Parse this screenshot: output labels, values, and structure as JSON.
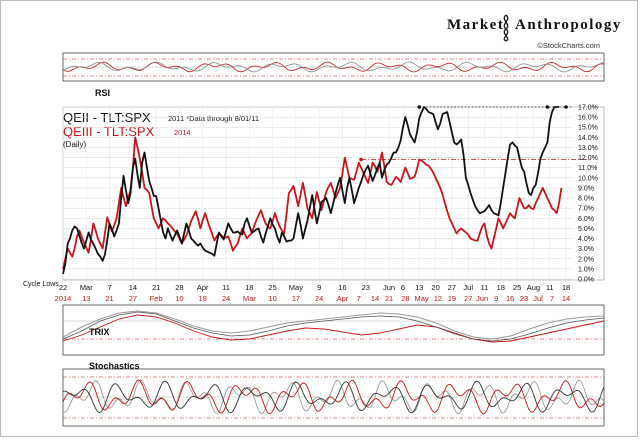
{
  "header": {
    "brand_left": "Market",
    "brand_right": "Anthropology",
    "source": "©StockCharts.com"
  },
  "panels": {
    "rsi_label": "RSI",
    "trix_label": "TRIX",
    "stochastics_label": "Stochastics"
  },
  "legend": {
    "line1_title": "QEII - TLT:SPX",
    "line1_note": "2011 *Data through 8/01/11",
    "line2_title": "QEIII - TLT:SPX",
    "line2_note": "2014",
    "line3": "(Daily)"
  },
  "annotation": {
    "cycle_lows": "Cycle Lows"
  },
  "chart_data": {
    "type": "line",
    "title": "QEII - TLT:SPX 2011 *Data through 8/01/11 / QEIII - TLT:SPX 2014 (Daily)",
    "colors": {
      "black_series": "#111111",
      "red_series": "#c8151b",
      "grid": "#d8d8d8"
    },
    "y_axis": {
      "side": "right",
      "unit": "%",
      "range": [
        0,
        17
      ],
      "ticks": [
        "0.0%",
        "1.0%",
        "2.0%",
        "3.0%",
        "4.0%",
        "5.0%",
        "6.0%",
        "7.0%",
        "8.0%",
        "9.0%",
        "10.0%",
        "11.0%",
        "12.0%",
        "13.0%",
        "14.0%",
        "15.0%",
        "16.0%",
        "17.0%"
      ]
    },
    "x_axis_black": {
      "ticks": [
        {
          "label": "22",
          "i": 0
        },
        {
          "label": "Mar",
          "i": 10
        },
        {
          "label": "7",
          "i": 20
        },
        {
          "label": "14",
          "i": 30
        },
        {
          "label": "21",
          "i": 40
        },
        {
          "label": "28",
          "i": 50
        },
        {
          "label": "Apr",
          "i": 60
        },
        {
          "label": "11",
          "i": 70
        },
        {
          "label": "18",
          "i": 80
        },
        {
          "label": "25",
          "i": 90
        },
        {
          "label": "May",
          "i": 100
        },
        {
          "label": "9",
          "i": 110
        },
        {
          "label": "16",
          "i": 120
        },
        {
          "label": "23",
          "i": 130
        },
        {
          "label": "Jun",
          "i": 140
        },
        {
          "label": "6",
          "i": 146
        },
        {
          "label": "13",
          "i": 153
        },
        {
          "label": "20",
          "i": 160
        },
        {
          "label": "27",
          "i": 167
        },
        {
          "label": "Jul",
          "i": 174
        },
        {
          "label": "11",
          "i": 181
        },
        {
          "label": "18",
          "i": 188
        },
        {
          "label": "25",
          "i": 195
        },
        {
          "label": "Aug",
          "i": 202
        },
        {
          "label": "11",
          "i": 209
        },
        {
          "label": "18",
          "i": 216
        }
      ]
    },
    "x_axis_red": {
      "ticks": [
        {
          "label": "2014",
          "i": 0
        },
        {
          "label": "13",
          "i": 10
        },
        {
          "label": "21",
          "i": 20
        },
        {
          "label": "27",
          "i": 30
        },
        {
          "label": "Feb",
          "i": 40
        },
        {
          "label": "10",
          "i": 50
        },
        {
          "label": "18",
          "i": 60
        },
        {
          "label": "24",
          "i": 70
        },
        {
          "label": "Mar",
          "i": 80
        },
        {
          "label": "10",
          "i": 90
        },
        {
          "label": "17",
          "i": 100
        },
        {
          "label": "24",
          "i": 110
        },
        {
          "label": "Apr",
          "i": 120
        },
        {
          "label": "7",
          "i": 127
        },
        {
          "label": "14",
          "i": 134
        },
        {
          "label": "21",
          "i": 140
        },
        {
          "label": "28",
          "i": 147
        },
        {
          "label": "May",
          "i": 154
        },
        {
          "label": "12",
          "i": 161
        },
        {
          "label": "19",
          "i": 167
        },
        {
          "label": "27",
          "i": 174
        },
        {
          "label": "Jun",
          "i": 180
        },
        {
          "label": "9",
          "i": 186
        },
        {
          "label": "16",
          "i": 192
        },
        {
          "label": "23",
          "i": 198
        },
        {
          "label": "Jul",
          "i": 204
        },
        {
          "label": "7",
          "i": 210
        },
        {
          "label": "14",
          "i": 216
        }
      ]
    },
    "series": [
      {
        "name": "QEII - TLT:SPX",
        "color": "#111111",
        "x_count": 220,
        "values": [
          0.5,
          1.5,
          3.5,
          4,
          4.8,
          5.2,
          5,
          4.3,
          3.6,
          3,
          3.8,
          4.6,
          3.9,
          3.5,
          3,
          2.5,
          2.2,
          1.8,
          2.4,
          3.8,
          5.5,
          4.9,
          4.2,
          4.8,
          5.5,
          8,
          10.2,
          8.8,
          7.5,
          8.5,
          11,
          11.9,
          10.3,
          9,
          11.5,
          12.5,
          11.1,
          9.7,
          9,
          8.2,
          8.2,
          7,
          5.8,
          4.6,
          4,
          5,
          4.4,
          3.8,
          4.3,
          4.8,
          4.2,
          3.5,
          4.5,
          5.5,
          4.8,
          4,
          3.8,
          3.5,
          3.3,
          3.5,
          3.1,
          2.8,
          2.7,
          2.6,
          2.5,
          2.3,
          3.5,
          4.6,
          4.2,
          3.9,
          4.7,
          5.5,
          5,
          4.6,
          4.6,
          4.7,
          4.5,
          4.4,
          5.5,
          6,
          5.3,
          4.6,
          4.7,
          4.9,
          5,
          4.2,
          3.6,
          4.5,
          5.2,
          6,
          5.4,
          5,
          4.2,
          3.6,
          4.6,
          4.2,
          3.7,
          3.8,
          3.8,
          4,
          5.3,
          6.5,
          5.4,
          4,
          4.9,
          5.8,
          7,
          8.3,
          6.9,
          5.5,
          6.5,
          7.6,
          7.8,
          8,
          7.3,
          6.5,
          7.4,
          8.5,
          9.3,
          10,
          8.7,
          7.5,
          9,
          10,
          8.8,
          7.5,
          8.2,
          9,
          9.6,
          10.3,
          10.8,
          11.2,
          10.4,
          9.7,
          10.3,
          11,
          11.5,
          10,
          10.8,
          11.3,
          11.5,
          12,
          12.5,
          12.5,
          13,
          13.7,
          15,
          16,
          15.2,
          14.3,
          13.9,
          13.5,
          14.5,
          15.9,
          16.5,
          17,
          16.8,
          16.5,
          16.4,
          16.3,
          15.5,
          14.8,
          15.4,
          16.3,
          16.4,
          16.5,
          15.5,
          14.5,
          13.5,
          13.3,
          13.5,
          13.8,
          12.3,
          10,
          9.3,
          8.5,
          7.8,
          7.2,
          6.8,
          6.5,
          6.6,
          6.7,
          7,
          7.3,
          6.8,
          6.5,
          6.4,
          6.3,
          7.5,
          9,
          10.5,
          12,
          13.3,
          13.5,
          13.2,
          13,
          12,
          11,
          10.6,
          9.5,
          8.5,
          8.3,
          9,
          9.3,
          10.5,
          11.9,
          12.5,
          13,
          13.5,
          15.5,
          16.5,
          17,
          17,
          17
        ]
      },
      {
        "name": "QEIII - TLT:SPX",
        "color": "#c8151b",
        "x_count": 220,
        "values": [
          1,
          2,
          3,
          2.6,
          2.2,
          3,
          4.2,
          4.8,
          4.2,
          3.6,
          3.1,
          2.6,
          3.9,
          5.5,
          4.8,
          4,
          3.5,
          3,
          4.5,
          6.1,
          5.4,
          4.7,
          5.3,
          6,
          7.5,
          9,
          8.1,
          7.2,
          8,
          8.8,
          11,
          14,
          13,
          11.9,
          10.5,
          9,
          8.8,
          8.5,
          7.2,
          6,
          5.5,
          5,
          5.5,
          6,
          5.8,
          5.5,
          5.3,
          5,
          4.7,
          4.5,
          4,
          3.5,
          3.9,
          4.3,
          5,
          5.7,
          6.2,
          6.7,
          5.9,
          5,
          5.8,
          6.5,
          5.8,
          5.1,
          4.5,
          3.8,
          4.2,
          4.5,
          4.3,
          4.1,
          4.1,
          4.2,
          3.5,
          2.8,
          3.2,
          3.5,
          4.3,
          5,
          4.5,
          4,
          4.3,
          4.5,
          5.2,
          5.8,
          6.3,
          6.8,
          6.1,
          5.5,
          5.2,
          5,
          5.7,
          6.5,
          5.8,
          5.2,
          4.8,
          4.5,
          6.5,
          8.5,
          8.8,
          9.2,
          8.2,
          7.2,
          8.3,
          9.5,
          8.3,
          7,
          6.5,
          6,
          7.3,
          8.6,
          7.7,
          6.8,
          7.7,
          8.6,
          9.1,
          9.5,
          8.8,
          8,
          8.5,
          9,
          10.5,
          12,
          11,
          10,
          9.9,
          9.8,
          10.6,
          11.5,
          11,
          10.5,
          10,
          9.5,
          10.5,
          11.5,
          11.1,
          10.6,
          11.5,
          12.5,
          11.1,
          9.6,
          9.4,
          9.3,
          9.7,
          10.1,
          9.9,
          9.6,
          10.3,
          11,
          10.5,
          9.9,
          10,
          10.1,
          10.9,
          11.8,
          11.7,
          11.5,
          11.3,
          11.2,
          10.9,
          10.5,
          10,
          9.5,
          9,
          8.3,
          7.5,
          6.7,
          6,
          5.5,
          5,
          4.5,
          4.8,
          5,
          4.8,
          4.6,
          4.4,
          4,
          3.9,
          3.8,
          3.8,
          4.5,
          5.2,
          5.5,
          4.3,
          3.5,
          3,
          4,
          5,
          6,
          5.5,
          5,
          5.5,
          6,
          6.5,
          6.2,
          6,
          7,
          8,
          7.5,
          7,
          7,
          7.3,
          7,
          6.9,
          7.5,
          8,
          8.5,
          9,
          8.5,
          8,
          7.5,
          7,
          6.8,
          6.5,
          7.5,
          9
        ]
      }
    ],
    "reference_lines": [
      {
        "series": "QEII - TLT:SPX",
        "value": 17.0,
        "style": "dotted"
      },
      {
        "series": "QEIII - TLT:SPX",
        "value": 11.8,
        "style": "dashdot"
      }
    ]
  }
}
